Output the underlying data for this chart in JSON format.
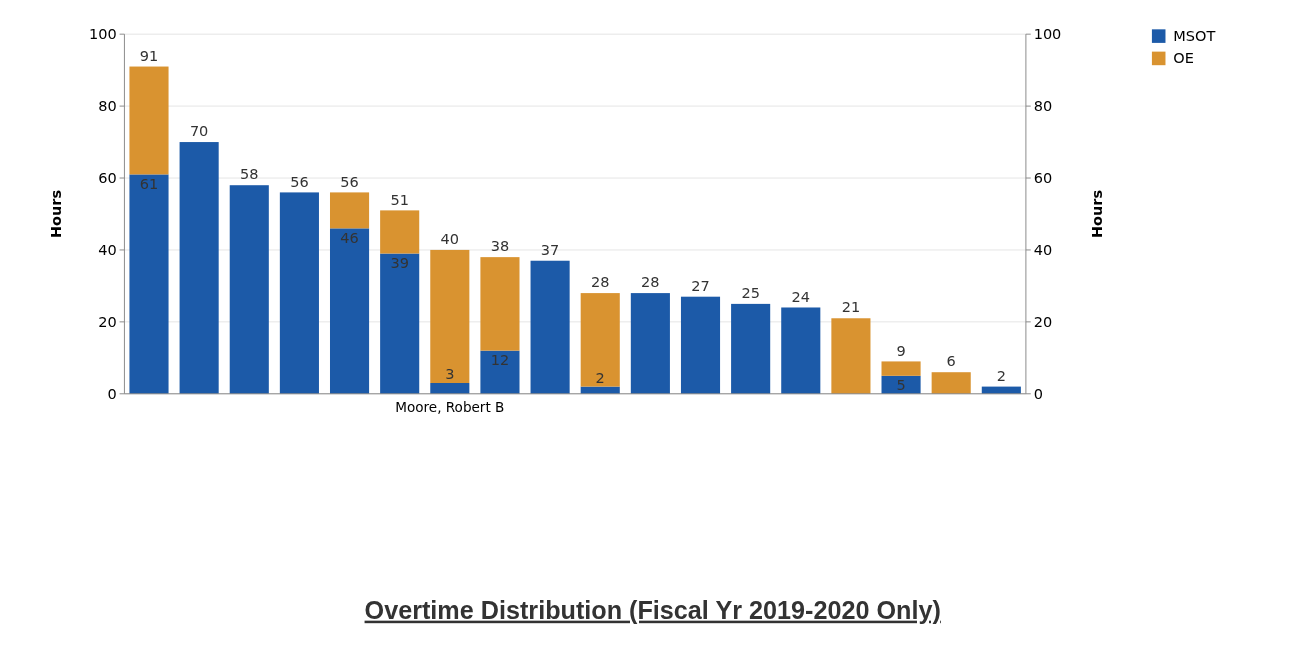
{
  "chart_data": {
    "type": "bar",
    "title": "Overtime Distribution (Fiscal Yr 2019-2020 Only)",
    "ylabel": "Hours",
    "y2label": "Hours",
    "categories": [
      null,
      null,
      null,
      null,
      null,
      null,
      "Moore, Robert B",
      null,
      null,
      null,
      null,
      null,
      null,
      null,
      null,
      null,
      null,
      null
    ],
    "stacked": true,
    "series": [
      {
        "name": "MSOT",
        "color": "#1c5aa8",
        "values": [
          61,
          70,
          58,
          56,
          46,
          39,
          3,
          12,
          37,
          2,
          28,
          27,
          25,
          24,
          0,
          5,
          0,
          2
        ],
        "value_labels": [
          "61",
          null,
          null,
          null,
          "46",
          "39",
          "3",
          "12",
          null,
          "2",
          null,
          null,
          null,
          null,
          null,
          "5",
          null,
          null
        ]
      },
      {
        "name": "OE",
        "color": "#d99330",
        "values": [
          30,
          0,
          0,
          0,
          10,
          12,
          37,
          26,
          0,
          26,
          0,
          0,
          0,
          0,
          21,
          4,
          6,
          0
        ]
      }
    ],
    "totals": [
      "91",
      "70",
      "58",
      "56",
      "56",
      "51",
      "40",
      "38",
      "37",
      "28",
      "28",
      "27",
      "25",
      "24",
      "21",
      "9",
      "6",
      "2"
    ],
    "ylim": [
      0,
      100
    ],
    "yticks": [
      0,
      20,
      40,
      60,
      80,
      100
    ],
    "y2lim": [
      0,
      100
    ],
    "y2ticks": [
      0,
      20,
      40,
      60,
      80,
      100
    ],
    "grid": "y",
    "legend": "top right"
  }
}
